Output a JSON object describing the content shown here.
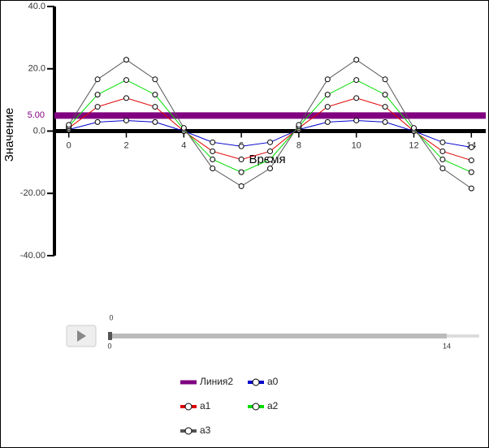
{
  "chart_data": {
    "type": "line",
    "xlabel": "Время",
    "ylabel": "Значение",
    "x": [
      0,
      1,
      2,
      3,
      4,
      5,
      6,
      7,
      8,
      9,
      10,
      11,
      12,
      13,
      14
    ],
    "xlim": [
      -0.5,
      14.5
    ],
    "xticks": [
      0,
      2,
      4,
      6,
      8,
      10,
      12,
      14
    ],
    "ylim": [
      -40,
      40
    ],
    "yticks": [
      {
        "value": 40,
        "label": "40.0"
      },
      {
        "value": 20,
        "label": "20.0"
      },
      {
        "value": 0,
        "label": "0.0"
      },
      {
        "value": -20,
        "label": "-20.00"
      },
      {
        "value": -40,
        "label": "-40.00"
      }
    ],
    "hline": {
      "name": "Линия2",
      "value": 5,
      "label": "5.00",
      "color": "#800080"
    },
    "series": [
      {
        "name": "a0",
        "color": "#0000cc",
        "values": [
          0.5,
          2.9,
          3.4,
          2.9,
          0,
          -3.6,
          -4.9,
          -3.6,
          0.5,
          2.9,
          3.4,
          2.9,
          0,
          -3.6,
          -5.2
        ]
      },
      {
        "name": "a1",
        "color": "#e00000",
        "values": [
          1,
          7.8,
          10.6,
          7.8,
          0,
          -6.5,
          -9.1,
          -6.5,
          1,
          7.8,
          10.6,
          7.8,
          0,
          -6.5,
          -9.4
        ]
      },
      {
        "name": "a2",
        "color": "#00dd00",
        "values": [
          1.5,
          11.7,
          16.4,
          11.7,
          0.5,
          -9.1,
          -13.2,
          -9.1,
          1.5,
          11.7,
          16.4,
          11.7,
          0.5,
          -9.1,
          -13.2
        ]
      },
      {
        "name": "a3",
        "color": "#555555",
        "values": [
          2,
          16.6,
          22.9,
          16.6,
          1,
          -12,
          -17.7,
          -12,
          2,
          16.6,
          22.9,
          16.6,
          1,
          -12,
          -18.4
        ]
      }
    ],
    "slider": {
      "min": 0,
      "max": 14,
      "value": 0
    }
  }
}
